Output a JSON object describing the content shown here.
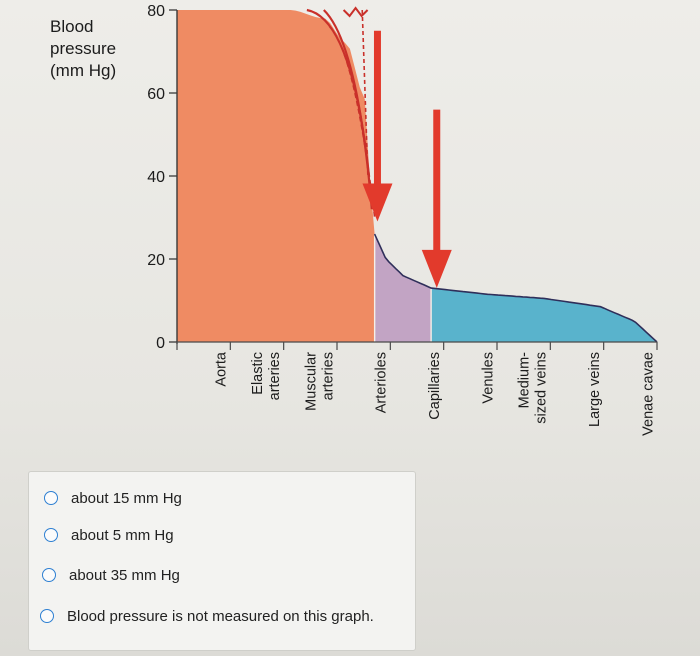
{
  "chart_data": {
    "type": "area",
    "ylabel_lines": [
      "Blood",
      "pressure",
      "(mm Hg)"
    ],
    "yticks": [
      "80",
      "60",
      "40",
      "20",
      "0"
    ],
    "ylim": [
      0,
      80
    ],
    "categories": [
      {
        "lines": [
          "Aorta"
        ]
      },
      {
        "lines": [
          "Elastic",
          "arteries"
        ]
      },
      {
        "lines": [
          "Muscular",
          "arteries"
        ]
      },
      {
        "lines": [
          "Arterioles"
        ]
      },
      {
        "lines": [
          "Capillaries"
        ]
      },
      {
        "lines": [
          "Venules"
        ]
      },
      {
        "lines": [
          "Medium-",
          "sized veins"
        ]
      },
      {
        "lines": [
          "Large veins"
        ]
      },
      {
        "lines": [
          "Venae cavae"
        ]
      }
    ],
    "regions": [
      {
        "name": "arterial",
        "color": "#ef8b63",
        "from": 0,
        "to": 3.5,
        "value_start": 80,
        "value_end": 26
      },
      {
        "name": "capillary",
        "color": "#c2a4c4",
        "from": 3.5,
        "to": 4.5,
        "value_start": 26,
        "value_end": 13
      },
      {
        "name": "venous",
        "color": "#59b3cc",
        "from": 4.5,
        "to": 8.5,
        "value_start": 13,
        "value_end": 0
      }
    ],
    "pressure_curve": [
      [
        0,
        80
      ],
      [
        2.0,
        80
      ],
      [
        2.6,
        78
      ],
      [
        3.0,
        72
      ],
      [
        3.3,
        60
      ],
      [
        3.5,
        26
      ],
      [
        3.7,
        20
      ],
      [
        4.0,
        16
      ],
      [
        4.5,
        13
      ],
      [
        5.5,
        11.5
      ],
      [
        6.5,
        10.5
      ],
      [
        7.5,
        8.5
      ],
      [
        8.1,
        5
      ],
      [
        8.5,
        0
      ]
    ],
    "arrows": [
      {
        "x": 3.55,
        "from_y": 75,
        "to_y": 30,
        "color": "#e23a2c"
      },
      {
        "x": 4.6,
        "from_y": 56,
        "to_y": 14,
        "color": "#e23a2c"
      }
    ],
    "colors": {
      "arterial": "#ef8b63",
      "capillary": "#c2a4c4",
      "venous": "#59b3cc",
      "curve": "#c9302a",
      "arrow": "#e23a2c",
      "dark_line": "#2f2f5a"
    }
  },
  "quiz": {
    "options": [
      {
        "label": "about 15 mm Hg"
      },
      {
        "label": "about 5 mm Hg"
      },
      {
        "label": "about 35 mm Hg"
      },
      {
        "label": "Blood pressure is not measured on this graph."
      }
    ]
  }
}
